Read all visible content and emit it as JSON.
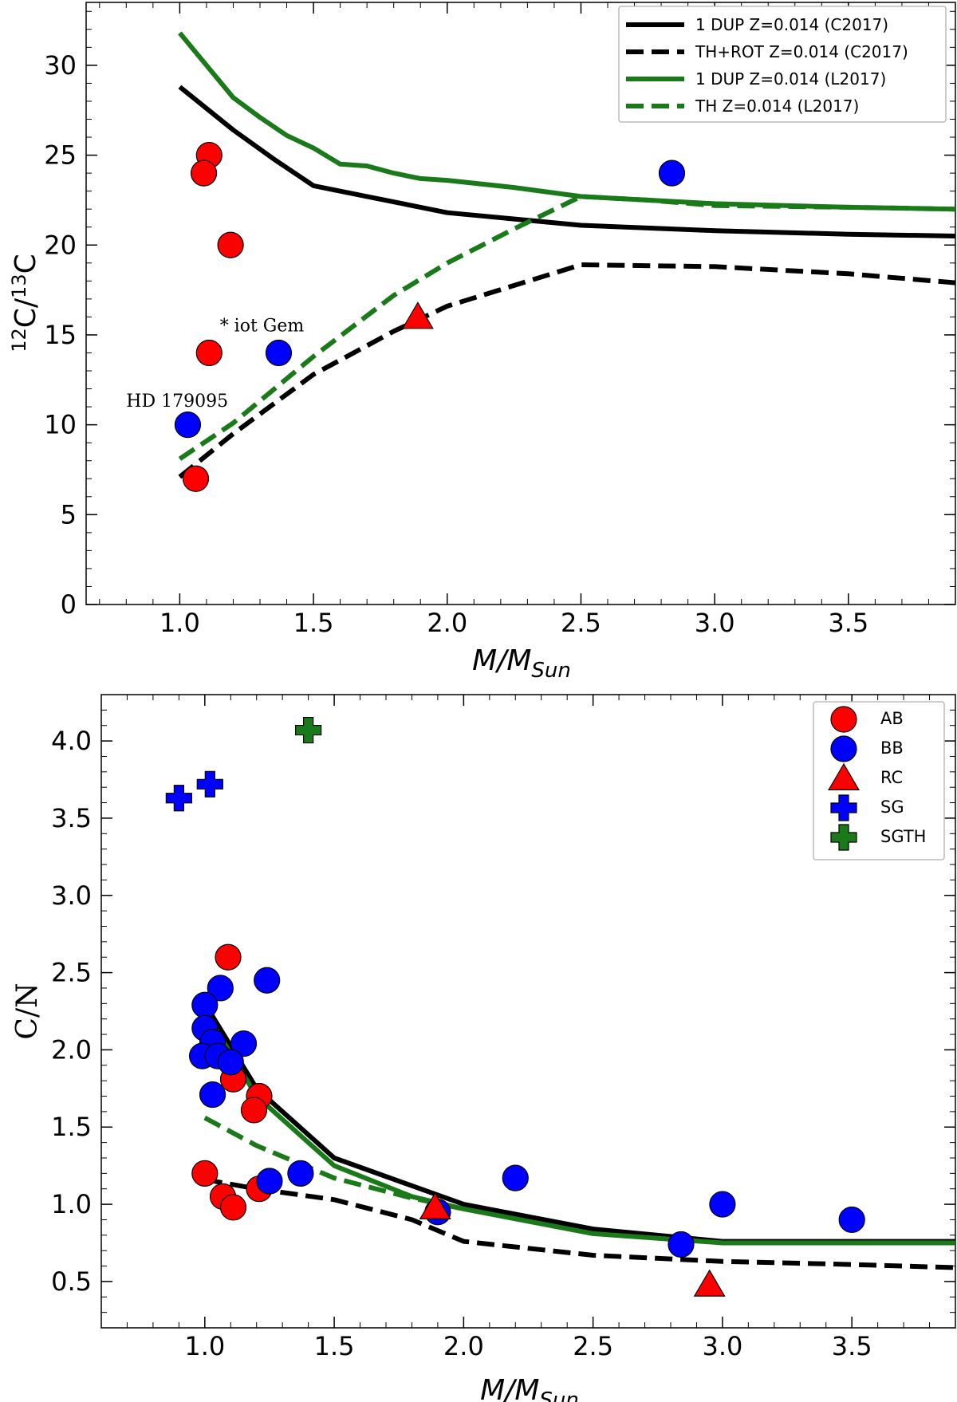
{
  "chart_data": [
    {
      "type": "line+scatter",
      "panel": "top",
      "xlabel_main": "M/M",
      "xlabel_sub": "Sun",
      "ylabel_sup1": "12",
      "ylabel_base1": "C/",
      "ylabel_sup2": "13",
      "ylabel_base2": "C",
      "xlim": [
        0.65,
        3.9
      ],
      "ylim": [
        0,
        33.5
      ],
      "xticks": [
        1.0,
        1.5,
        2.0,
        2.5,
        3.0,
        3.5
      ],
      "xtick_labels": [
        "1.0",
        "1.5",
        "2.0",
        "2.5",
        "3.0",
        "3.5"
      ],
      "yticks": [
        0,
        5,
        10,
        15,
        20,
        25,
        30
      ],
      "ytick_labels": [
        "0",
        "5",
        "10",
        "15",
        "20",
        "25",
        "30"
      ],
      "legend_position": "top-right",
      "series": [
        {
          "name": "1 DUP Z=0.014 (C2017)",
          "color": "#000000",
          "dash": "solid",
          "x": [
            1.0,
            1.2,
            1.35,
            1.5,
            1.7,
            2.0,
            2.5,
            3.0,
            3.5,
            3.9
          ],
          "y": [
            28.8,
            26.4,
            24.8,
            23.3,
            22.7,
            21.8,
            21.1,
            20.8,
            20.6,
            20.5
          ]
        },
        {
          "name": "TH+ROT Z=0.014 (C2017)",
          "color": "#000000",
          "dash": "dashed",
          "x": [
            1.0,
            1.2,
            1.5,
            1.8,
            2.0,
            2.5,
            3.0,
            3.5,
            3.9
          ],
          "y": [
            7.1,
            9.5,
            12.8,
            15.2,
            16.6,
            18.9,
            18.8,
            18.4,
            17.9
          ]
        },
        {
          "name": "1 DUP Z=0.014 (L2017)",
          "color": "#1a7a1a",
          "dash": "solid",
          "x": [
            1.0,
            1.1,
            1.2,
            1.3,
            1.4,
            1.5,
            1.6,
            1.7,
            1.8,
            1.9,
            2.0,
            2.25,
            2.5,
            2.75,
            3.0,
            3.5,
            3.9
          ],
          "y": [
            31.8,
            30.0,
            28.2,
            27.1,
            26.1,
            25.4,
            24.5,
            24.4,
            24.0,
            23.7,
            23.6,
            23.2,
            22.7,
            22.5,
            22.3,
            22.1,
            22.0
          ]
        },
        {
          "name": "TH Z=0.014 (L2017)",
          "color": "#1a7a1a",
          "dash": "dashed",
          "x": [
            1.0,
            1.2,
            1.5,
            1.8,
            2.0,
            2.25,
            2.5,
            2.75,
            3.0,
            3.5,
            3.9
          ],
          "y": [
            8.1,
            10.1,
            13.8,
            17.2,
            19.0,
            20.9,
            22.7,
            22.5,
            22.2,
            22.1,
            22.0
          ]
        }
      ],
      "points": [
        {
          "group": "AB",
          "marker": "circle",
          "color": "#ff0000",
          "x": 1.11,
          "y": 25.0
        },
        {
          "group": "AB",
          "marker": "circle",
          "color": "#ff0000",
          "x": 1.09,
          "y": 24.0
        },
        {
          "group": "AB",
          "marker": "circle",
          "color": "#ff0000",
          "x": 1.19,
          "y": 20.0
        },
        {
          "group": "AB",
          "marker": "circle",
          "color": "#ff0000",
          "x": 1.11,
          "y": 14.0
        },
        {
          "group": "AB",
          "marker": "circle",
          "color": "#ff0000",
          "x": 1.06,
          "y": 7.0
        },
        {
          "group": "BB",
          "marker": "circle",
          "color": "#0000ff",
          "x": 1.37,
          "y": 14.0
        },
        {
          "group": "BB",
          "marker": "circle",
          "color": "#0000ff",
          "x": 1.03,
          "y": 10.0
        },
        {
          "group": "BB",
          "marker": "circle",
          "color": "#0000ff",
          "x": 2.84,
          "y": 24.0
        },
        {
          "group": "RC",
          "marker": "triangle",
          "color": "#ff0000",
          "x": 1.89,
          "y": 16.0
        }
      ],
      "annotations": [
        {
          "text": "* iot Gem",
          "x": 1.15,
          "y": 15.2
        },
        {
          "text": "HD 179095",
          "x": 0.8,
          "y": 11.0
        }
      ]
    },
    {
      "type": "line+scatter",
      "panel": "bottom",
      "xlabel_main": "M/M",
      "xlabel_sub": "Sun",
      "ylabel": "C/N",
      "xlim": [
        0.6,
        3.9
      ],
      "ylim": [
        0.2,
        4.3
      ],
      "xticks": [
        1.0,
        1.5,
        2.0,
        2.5,
        3.0,
        3.5
      ],
      "xtick_labels": [
        "1.0",
        "1.5",
        "2.0",
        "2.5",
        "3.0",
        "3.5"
      ],
      "yticks": [
        0.5,
        1.0,
        1.5,
        2.0,
        2.5,
        3.0,
        3.5,
        4.0
      ],
      "ytick_labels": [
        "0.5",
        "1.0",
        "1.5",
        "2.0",
        "2.5",
        "3.0",
        "3.5",
        "4.0"
      ],
      "legend_position": "top-right",
      "legend": [
        {
          "label": "AB",
          "marker": "circle",
          "color": "#ff0000"
        },
        {
          "label": "BB",
          "marker": "circle",
          "color": "#0000ff"
        },
        {
          "label": "RC",
          "marker": "triangle",
          "color": "#ff0000"
        },
        {
          "label": "SG",
          "marker": "plus",
          "color": "#0000ff"
        },
        {
          "label": "SGTH",
          "marker": "plus",
          "color": "#1a7a1a"
        }
      ],
      "series": [
        {
          "name": "1 DUP Z=0.014 (C2017)",
          "color": "#000000",
          "dash": "solid",
          "x": [
            1.0,
            1.2,
            1.5,
            2.0,
            2.5,
            3.0,
            3.5,
            3.9
          ],
          "y": [
            2.3,
            1.75,
            1.3,
            1.0,
            0.84,
            0.76,
            0.76,
            0.76
          ]
        },
        {
          "name": "TH+ROT Z=0.014 (C2017)",
          "color": "#000000",
          "dash": "dashed",
          "x": [
            1.0,
            1.2,
            1.5,
            1.8,
            2.0,
            2.5,
            3.0,
            3.5,
            3.9
          ],
          "y": [
            1.16,
            1.1,
            1.03,
            0.9,
            0.76,
            0.67,
            0.63,
            0.61,
            0.59
          ]
        },
        {
          "name": "1 DUP Z=0.014 (L2017)",
          "color": "#1a7a1a",
          "dash": "solid",
          "x": [
            1.0,
            1.2,
            1.5,
            1.8,
            2.0,
            2.5,
            3.0,
            3.5,
            3.9
          ],
          "y": [
            2.25,
            1.7,
            1.25,
            1.05,
            0.97,
            0.81,
            0.75,
            0.75,
            0.75
          ]
        },
        {
          "name": "TH Z=0.014 (L2017)",
          "color": "#1a7a1a",
          "dash": "dashed",
          "x": [
            1.0,
            1.2,
            1.5,
            1.8,
            2.0
          ],
          "y": [
            1.56,
            1.38,
            1.17,
            1.04,
            0.97
          ]
        }
      ],
      "points": [
        {
          "group": "AB",
          "marker": "circle",
          "color": "#ff0000",
          "x": 1.09,
          "y": 2.6
        },
        {
          "group": "AB",
          "marker": "circle",
          "color": "#ff0000",
          "x": 1.11,
          "y": 1.81
        },
        {
          "group": "AB",
          "marker": "circle",
          "color": "#ff0000",
          "x": 1.21,
          "y": 1.7
        },
        {
          "group": "AB",
          "marker": "circle",
          "color": "#ff0000",
          "x": 1.19,
          "y": 1.61
        },
        {
          "group": "AB",
          "marker": "circle",
          "color": "#ff0000",
          "x": 1.0,
          "y": 1.2
        },
        {
          "group": "AB",
          "marker": "circle",
          "color": "#ff0000",
          "x": 1.07,
          "y": 1.05
        },
        {
          "group": "AB",
          "marker": "circle",
          "color": "#ff0000",
          "x": 1.21,
          "y": 1.1
        },
        {
          "group": "AB",
          "marker": "circle",
          "color": "#ff0000",
          "x": 1.11,
          "y": 0.98
        },
        {
          "group": "BB",
          "marker": "circle",
          "color": "#0000ff",
          "x": 1.24,
          "y": 2.45
        },
        {
          "group": "BB",
          "marker": "circle",
          "color": "#0000ff",
          "x": 1.06,
          "y": 2.4
        },
        {
          "group": "BB",
          "marker": "circle",
          "color": "#0000ff",
          "x": 1.0,
          "y": 2.29
        },
        {
          "group": "BB",
          "marker": "circle",
          "color": "#0000ff",
          "x": 1.0,
          "y": 2.14
        },
        {
          "group": "BB",
          "marker": "circle",
          "color": "#0000ff",
          "x": 1.03,
          "y": 2.05
        },
        {
          "group": "BB",
          "marker": "circle",
          "color": "#0000ff",
          "x": 1.15,
          "y": 2.04
        },
        {
          "group": "BB",
          "marker": "circle",
          "color": "#0000ff",
          "x": 0.99,
          "y": 1.96
        },
        {
          "group": "BB",
          "marker": "circle",
          "color": "#0000ff",
          "x": 1.05,
          "y": 1.96
        },
        {
          "group": "BB",
          "marker": "circle",
          "color": "#0000ff",
          "x": 1.1,
          "y": 1.92
        },
        {
          "group": "BB",
          "marker": "circle",
          "color": "#0000ff",
          "x": 1.03,
          "y": 1.71
        },
        {
          "group": "BB",
          "marker": "circle",
          "color": "#0000ff",
          "x": 1.37,
          "y": 1.2
        },
        {
          "group": "BB",
          "marker": "circle",
          "color": "#0000ff",
          "x": 1.25,
          "y": 1.15
        },
        {
          "group": "BB",
          "marker": "circle",
          "color": "#0000ff",
          "x": 2.2,
          "y": 1.17
        },
        {
          "group": "BB",
          "marker": "circle",
          "color": "#0000ff",
          "x": 3.0,
          "y": 1.0
        },
        {
          "group": "BB",
          "marker": "circle",
          "color": "#0000ff",
          "x": 3.5,
          "y": 0.9
        },
        {
          "group": "BB",
          "marker": "circle",
          "color": "#0000ff",
          "x": 2.84,
          "y": 0.74
        },
        {
          "group": "BB",
          "marker": "circle",
          "color": "#0000ff",
          "x": 1.9,
          "y": 0.95
        },
        {
          "group": "RC",
          "marker": "triangle",
          "color": "#ff0000",
          "x": 1.89,
          "y": 0.98
        },
        {
          "group": "RC",
          "marker": "triangle",
          "color": "#ff0000",
          "x": 2.95,
          "y": 0.48
        },
        {
          "group": "SG",
          "marker": "plus",
          "color": "#0000ff",
          "x": 0.9,
          "y": 3.63
        },
        {
          "group": "SG",
          "marker": "plus",
          "color": "#0000ff",
          "x": 1.02,
          "y": 3.72
        },
        {
          "group": "SGTH",
          "marker": "plus",
          "color": "#1a7a1a",
          "x": 1.4,
          "y": 4.07
        }
      ]
    }
  ]
}
